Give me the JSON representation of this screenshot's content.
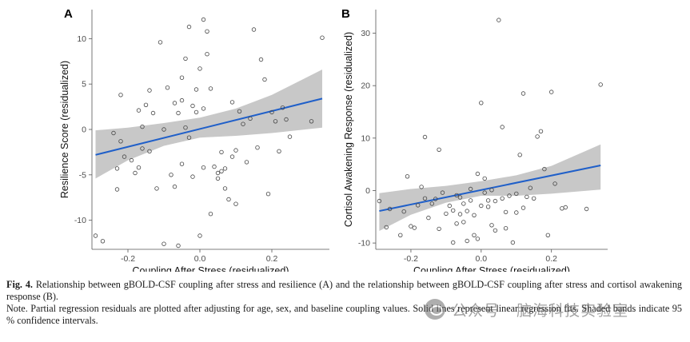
{
  "chart_data": [
    {
      "panel": "A",
      "type": "scatter",
      "xlabel": "Coupling After Stress (residualized)",
      "ylabel": "Resilience Score (residualized)",
      "xlim": [
        -0.3,
        0.36
      ],
      "ylim": [
        -13.2,
        13.2
      ],
      "xticks": [
        -0.2,
        0.0,
        0.2
      ],
      "xtick_labels": [
        "-0.2",
        "0.0",
        "0.2"
      ],
      "yticks": [
        -10,
        -5,
        0,
        5,
        10
      ],
      "ytick_labels": [
        "-10",
        "-5",
        "0",
        "5",
        "10"
      ],
      "grid": false,
      "fit": {
        "x": [
          -0.29,
          0.34
        ],
        "y": [
          -2.8,
          3.4
        ]
      },
      "band": {
        "x": [
          -0.29,
          -0.2,
          -0.1,
          0.0,
          0.1,
          0.2,
          0.34
        ],
        "lower": [
          -5.4,
          -3.4,
          -1.8,
          -0.9,
          -0.7,
          -0.4,
          0.2
        ],
        "upper": [
          -0.1,
          0.2,
          0.7,
          1.3,
          2.3,
          3.8,
          6.6
        ]
      },
      "points": {
        "x": [
          -0.29,
          -0.27,
          -0.24,
          -0.23,
          -0.23,
          -0.22,
          -0.22,
          -0.21,
          -0.19,
          -0.18,
          -0.17,
          -0.17,
          -0.16,
          -0.16,
          -0.15,
          -0.14,
          -0.14,
          -0.13,
          -0.12,
          -0.11,
          -0.1,
          -0.1,
          -0.09,
          -0.08,
          -0.07,
          -0.07,
          -0.06,
          -0.06,
          -0.05,
          -0.05,
          -0.05,
          -0.04,
          -0.04,
          -0.03,
          -0.03,
          -0.02,
          -0.02,
          -0.01,
          -0.01,
          0.0,
          0.0,
          0.01,
          0.01,
          0.01,
          0.02,
          0.02,
          0.03,
          0.03,
          0.04,
          0.05,
          0.05,
          0.06,
          0.06,
          0.07,
          0.07,
          0.08,
          0.09,
          0.09,
          0.1,
          0.1,
          0.11,
          0.12,
          0.13,
          0.14,
          0.15,
          0.16,
          0.17,
          0.18,
          0.19,
          0.2,
          0.21,
          0.22,
          0.23,
          0.24,
          0.25,
          0.31,
          0.34
        ],
        "y": [
          -11.7,
          -12.3,
          -0.4,
          -6.6,
          -4.3,
          3.8,
          -1.3,
          -3.0,
          -3.4,
          -4.8,
          2.1,
          -4.2,
          0.3,
          -2.1,
          2.7,
          -2.4,
          4.3,
          1.8,
          -6.5,
          9.6,
          -12.6,
          0.0,
          4.6,
          -5.0,
          -6.3,
          2.9,
          -12.8,
          1.8,
          5.7,
          -3.8,
          3.2,
          7.8,
          0.2,
          -0.9,
          11.3,
          2.6,
          -5.2,
          4.4,
          1.9,
          -11.7,
          6.7,
          2.3,
          12.1,
          -4.2,
          8.3,
          10.8,
          4.5,
          -9.3,
          -4.1,
          -5.4,
          -4.8,
          -4.6,
          -2.5,
          -4.3,
          -6.5,
          -7.7,
          3.0,
          -3.0,
          -2.3,
          -8.2,
          2.0,
          0.6,
          -3.6,
          1.2,
          11.0,
          -2.0,
          7.7,
          5.5,
          -7.1,
          1.9,
          0.9,
          -2.4,
          2.4,
          1.1,
          -0.8,
          0.9,
          10.1
        ]
      }
    },
    {
      "panel": "B",
      "type": "scatter",
      "xlabel": "Coupling After Stress (residualized)",
      "ylabel": "Cortisol Awakening Response (residualized)",
      "xlim": [
        -0.3,
        0.36
      ],
      "ylim": [
        -11.2,
        34.5
      ],
      "xticks": [
        -0.2,
        0.0,
        0.2
      ],
      "xtick_labels": [
        "-0.2",
        "0.0",
        "0.2"
      ],
      "yticks": [
        -10,
        0,
        10,
        20,
        30
      ],
      "ytick_labels": [
        "-10",
        "0",
        "10",
        "20",
        "30"
      ],
      "grid": false,
      "fit": {
        "x": [
          -0.29,
          0.34
        ],
        "y": [
          -3.9,
          4.8
        ]
      },
      "band": {
        "x": [
          -0.29,
          -0.2,
          -0.1,
          0.0,
          0.1,
          0.2,
          0.34
        ],
        "lower": [
          -7.7,
          -4.6,
          -2.3,
          -1.0,
          -1.0,
          -0.6,
          0.2
        ],
        "upper": [
          -0.5,
          0.3,
          0.9,
          1.8,
          2.9,
          4.7,
          8.8
        ]
      },
      "points": {
        "x": [
          -0.29,
          -0.27,
          -0.26,
          -0.23,
          -0.22,
          -0.21,
          -0.2,
          -0.19,
          -0.18,
          -0.17,
          -0.16,
          -0.16,
          -0.15,
          -0.14,
          -0.13,
          -0.12,
          -0.12,
          -0.11,
          -0.1,
          -0.09,
          -0.08,
          -0.08,
          -0.07,
          -0.07,
          -0.06,
          -0.06,
          -0.05,
          -0.05,
          -0.04,
          -0.04,
          -0.03,
          -0.03,
          -0.02,
          -0.02,
          -0.01,
          -0.01,
          0.0,
          0.0,
          0.01,
          0.01,
          0.02,
          0.02,
          0.03,
          0.03,
          0.04,
          0.04,
          0.05,
          0.06,
          0.06,
          0.07,
          0.07,
          0.08,
          0.09,
          0.1,
          0.1,
          0.11,
          0.12,
          0.12,
          0.13,
          0.14,
          0.15,
          0.16,
          0.17,
          0.18,
          0.19,
          0.2,
          0.21,
          0.23,
          0.24,
          0.3,
          0.34
        ],
        "y": [
          -2.0,
          -7.0,
          -3.5,
          -8.5,
          -4.0,
          2.7,
          -6.8,
          -7.1,
          -2.8,
          0.7,
          10.2,
          -1.5,
          -5.2,
          -2.5,
          -1.6,
          7.8,
          -7.3,
          -0.4,
          -4.4,
          -2.9,
          -9.9,
          -3.8,
          -0.9,
          -6.3,
          -1.3,
          -4.5,
          -6.0,
          -2.5,
          -9.6,
          -3.9,
          0.3,
          -1.9,
          -8.5,
          -4.7,
          -9.2,
          3.2,
          16.7,
          -2.9,
          2.3,
          -0.4,
          -1.9,
          -3.1,
          -6.6,
          0.1,
          -7.6,
          -2.0,
          32.5,
          -1.5,
          12.1,
          -7.2,
          -4.1,
          -1.0,
          -9.9,
          -4.2,
          -0.6,
          6.8,
          18.5,
          -3.3,
          -1.2,
          0.5,
          -1.5,
          10.3,
          11.3,
          4.1,
          -8.5,
          18.8,
          1.3,
          -3.4,
          -3.2,
          -3.5,
          20.2
        ]
      }
    }
  ],
  "panels": [
    {
      "label": "A",
      "xlabel": "Coupling After Stress (residualized)",
      "ylabel": "Resilience Score (residualized)"
    },
    {
      "label": "B",
      "xlabel": "Coupling After Stress (residualized)",
      "ylabel": "Cortisol Awakening Response (residualized)"
    }
  ],
  "colors": {
    "fit_line": "#1f5fc9",
    "band": "#c8c8c8",
    "points": "#444444"
  },
  "caption": {
    "fig_label": "Fig. 4.",
    "line1": "Relationship between gBOLD-CSF coupling after stress and resilience (A) and the relationship between gBOLD-CSF coupling after stress and cortisol awakening response (B).",
    "note": "Note. Partial regression residuals are plotted after adjusting for age, sex, and baseline coupling values. Solid lines represent linear regression fits. Shaded bands indicate 95 % confidence intervals."
  },
  "watermark": {
    "icon": "wechat-icon",
    "text": "公众号 · 脑海科技实验室"
  }
}
